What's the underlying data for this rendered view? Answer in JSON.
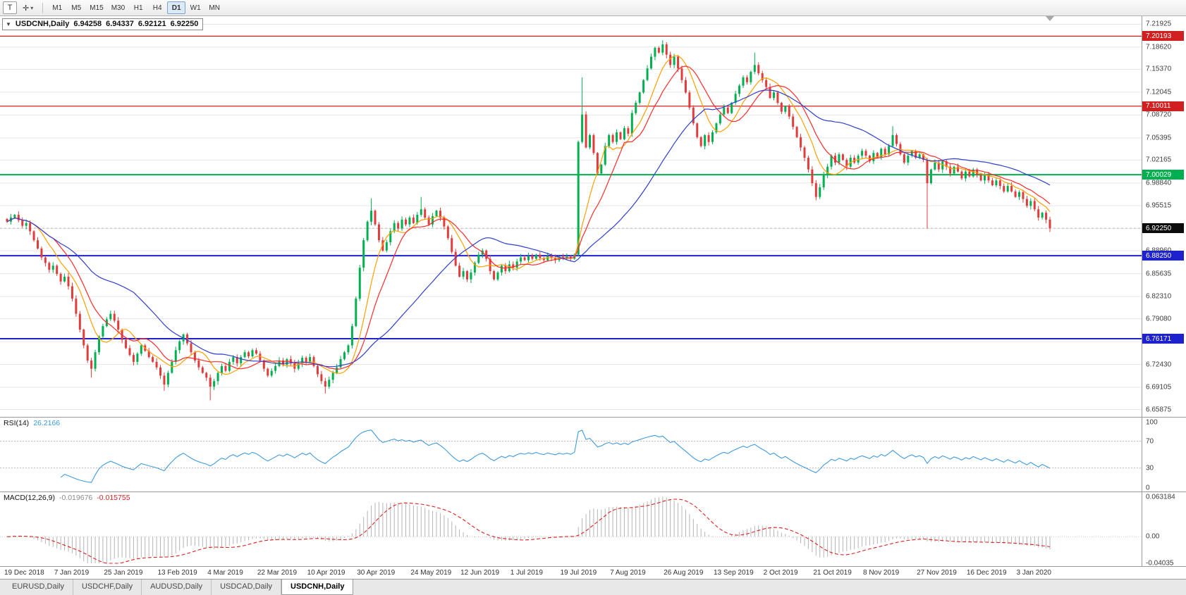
{
  "toolbar": {
    "templates_button": "T",
    "crosshair_button": "✛",
    "dropdown_arrow": "▾",
    "timeframes": [
      "M1",
      "M5",
      "M15",
      "M30",
      "H1",
      "H4",
      "D1",
      "W1",
      "MN"
    ],
    "active_timeframe": "D1"
  },
  "chart_header": {
    "collapse_arrow": "▼",
    "symbol": "USDCNH,Daily",
    "open": "6.94258",
    "high": "6.94337",
    "low": "6.92121",
    "close": "6.92250"
  },
  "tabs": {
    "items": [
      "EURUSD,Daily",
      "USDCHF,Daily",
      "AUDUSD,Daily",
      "USDCAD,Daily",
      "USDCNH,Daily"
    ],
    "active": "USDCNH,Daily"
  },
  "chart_data": {
    "type": "candlestick",
    "symbol": "USDCNH",
    "timeframe": "Daily",
    "grid": true,
    "price_range": {
      "top": 7.231,
      "bottom": 6.648
    },
    "price_axis_ticks": [
      "7.21925",
      "7.18620",
      "7.15370",
      "7.12045",
      "7.08720",
      "7.05395",
      "7.02165",
      "6.98840",
      "6.95515",
      "6.92190",
      "6.88960",
      "6.85635",
      "6.82310",
      "6.79080",
      "6.75755",
      "6.72430",
      "6.69105",
      "6.65875"
    ],
    "horizontal_levels": [
      {
        "price": 7.20193,
        "color": "#d02020",
        "width": 1.2
      },
      {
        "price": 7.10011,
        "color": "#d02020",
        "width": 1.2
      },
      {
        "price": 7.00029,
        "color": "#00b050",
        "width": 2
      },
      {
        "price": 6.8825,
        "color": "#1e22cc",
        "width": 2
      },
      {
        "price": 6.76171,
        "color": "#1e22cc",
        "width": 2
      }
    ],
    "current_price": 6.9225,
    "time_labels": [
      {
        "label": "19 Dec 2018",
        "index": 0
      },
      {
        "label": "7 Jan 2019",
        "index": 13
      },
      {
        "label": "25 Jan 2019",
        "index": 26
      },
      {
        "label": "13 Feb 2019",
        "index": 40
      },
      {
        "label": "4 Mar 2019",
        "index": 53
      },
      {
        "label": "22 Mar 2019",
        "index": 66
      },
      {
        "label": "10 Apr 2019",
        "index": 79
      },
      {
        "label": "30 Apr 2019",
        "index": 92
      },
      {
        "label": "24 May 2019",
        "index": 106
      },
      {
        "label": "12 Jun 2019",
        "index": 119
      },
      {
        "label": "1 Jul 2019",
        "index": 132
      },
      {
        "label": "19 Jul 2019",
        "index": 145
      },
      {
        "label": "7 Aug 2019",
        "index": 158
      },
      {
        "label": "26 Aug 2019",
        "index": 172
      },
      {
        "label": "13 Sep 2019",
        "index": 185
      },
      {
        "label": "2 Oct 2019",
        "index": 198
      },
      {
        "label": "21 Oct 2019",
        "index": 211
      },
      {
        "label": "8 Nov 2019",
        "index": 224
      },
      {
        "label": "27 Nov 2019",
        "index": 238
      },
      {
        "label": "16 Dec 2019",
        "index": 251
      },
      {
        "label": "3 Jan 2020",
        "index": 264
      }
    ],
    "candles": {
      "up_color": "#00b050",
      "down_color": "#e03c3c",
      "closes": [
        6.932,
        6.938,
        6.942,
        6.934,
        6.926,
        6.93,
        6.918,
        6.905,
        6.893,
        6.88,
        6.872,
        6.862,
        6.868,
        6.856,
        6.845,
        6.852,
        6.838,
        6.82,
        6.798,
        6.775,
        6.752,
        6.73,
        6.718,
        6.742,
        6.765,
        6.78,
        6.79,
        6.798,
        6.788,
        6.775,
        6.76,
        6.748,
        6.738,
        6.728,
        6.74,
        6.752,
        6.744,
        6.735,
        6.728,
        6.72,
        6.708,
        6.695,
        6.712,
        6.728,
        6.745,
        6.758,
        6.768,
        6.755,
        6.742,
        6.73,
        6.72,
        6.712,
        6.705,
        6.692,
        6.7,
        6.712,
        6.722,
        6.715,
        6.728,
        6.735,
        6.726,
        6.735,
        6.742,
        6.736,
        6.745,
        6.74,
        6.73,
        6.718,
        6.708,
        6.715,
        6.722,
        6.73,
        6.724,
        6.732,
        6.726,
        6.718,
        6.726,
        6.734,
        6.728,
        6.735,
        6.722,
        6.71,
        6.7,
        6.692,
        6.702,
        6.712,
        6.72,
        6.732,
        6.742,
        6.752,
        6.78,
        6.82,
        6.865,
        6.905,
        6.932,
        6.948,
        6.928,
        6.905,
        6.89,
        6.902,
        6.918,
        6.93,
        6.922,
        6.935,
        6.928,
        6.938,
        6.93,
        6.942,
        6.95,
        6.938,
        6.928,
        6.94,
        6.948,
        6.938,
        6.925,
        6.908,
        6.888,
        6.868,
        6.852,
        6.86,
        6.848,
        6.858,
        6.872,
        6.884,
        6.89,
        6.878,
        6.86,
        6.848,
        6.858,
        6.868,
        6.86,
        6.87,
        6.865,
        6.874,
        6.88,
        6.876,
        6.882,
        6.878,
        6.884,
        6.879,
        6.876,
        6.882,
        6.879,
        6.876,
        6.881,
        6.878,
        6.881,
        6.878,
        6.884,
        7.048,
        7.088,
        7.04,
        7.058,
        7.032,
        7.002,
        7.015,
        7.042,
        7.058,
        7.048,
        7.062,
        7.052,
        7.068,
        7.06,
        7.09,
        7.105,
        7.12,
        7.138,
        7.155,
        7.172,
        7.185,
        7.178,
        7.19,
        7.175,
        7.16,
        7.172,
        7.155,
        7.138,
        7.12,
        7.098,
        7.075,
        7.055,
        7.042,
        7.058,
        7.048,
        7.062,
        7.075,
        7.088,
        7.098,
        7.09,
        7.105,
        7.118,
        7.13,
        7.142,
        7.135,
        7.15,
        7.16,
        7.148,
        7.138,
        7.128,
        7.112,
        7.12,
        7.105,
        7.092,
        7.1,
        7.085,
        7.07,
        7.055,
        7.04,
        7.025,
        7.008,
        6.988,
        6.968,
        6.982,
        7.0,
        7.012,
        7.028,
        7.018,
        7.03,
        7.022,
        7.012,
        7.025,
        7.018,
        7.028,
        7.035,
        7.028,
        7.02,
        7.032,
        7.025,
        7.038,
        7.03,
        7.042,
        7.058,
        7.045,
        7.03,
        7.018,
        7.028,
        7.035,
        7.025,
        7.03,
        7.022,
        6.988,
        7.008,
        7.018,
        7.008,
        7.02,
        7.012,
        7.002,
        7.012,
        7.005,
        6.995,
        7.005,
        6.998,
        7.008,
        7.0,
        6.992,
        7.0,
        6.992,
        6.985,
        6.992,
        6.984,
        6.976,
        6.984,
        6.976,
        6.968,
        6.975,
        6.965,
        6.955,
        6.962,
        6.95,
        6.938,
        6.945,
        6.935,
        6.9225
      ],
      "wick_overrides": {
        "22": {
          "low": 6.705
        },
        "41": {
          "low": 6.686
        },
        "53": {
          "low": 6.672
        },
        "83": {
          "low": 6.682
        },
        "95": {
          "high": 6.966
        },
        "108": {
          "high": 6.968
        },
        "150": {
          "high": 7.142
        },
        "171": {
          "high": 7.196
        },
        "195": {
          "high": 7.178
        },
        "211": {
          "low": 6.963
        },
        "231": {
          "high": 7.071
        },
        "240": {
          "low": 6.922
        },
        "272": {
          "low": 6.917
        }
      }
    },
    "moving_averages": [
      {
        "period": 8,
        "type": "sma",
        "color": "#ffa000"
      },
      {
        "period": 13,
        "type": "sma",
        "color": "#ff2a2a"
      },
      {
        "period": 34,
        "type": "sma",
        "color": "#2f3fd0"
      }
    ],
    "rsi": {
      "name": "RSI(14)",
      "value": "26.2166",
      "period": 14,
      "color": "#3e9bdd",
      "levels": [
        70,
        30
      ],
      "axis_labels": [
        "100",
        "70",
        "30",
        "0"
      ]
    },
    "macd": {
      "name": "MACD(12,26,9)",
      "main_value": "-0.019676",
      "signal_value": "-0.015755",
      "fast": 12,
      "slow": 26,
      "signal": 9,
      "histogram_color": "#b4b4b4",
      "signal_color": "#e02020",
      "axis_labels": [
        "0.063184",
        "0.00",
        "-0.04035"
      ],
      "range": {
        "max": 0.063184,
        "min": -0.04035
      }
    }
  }
}
